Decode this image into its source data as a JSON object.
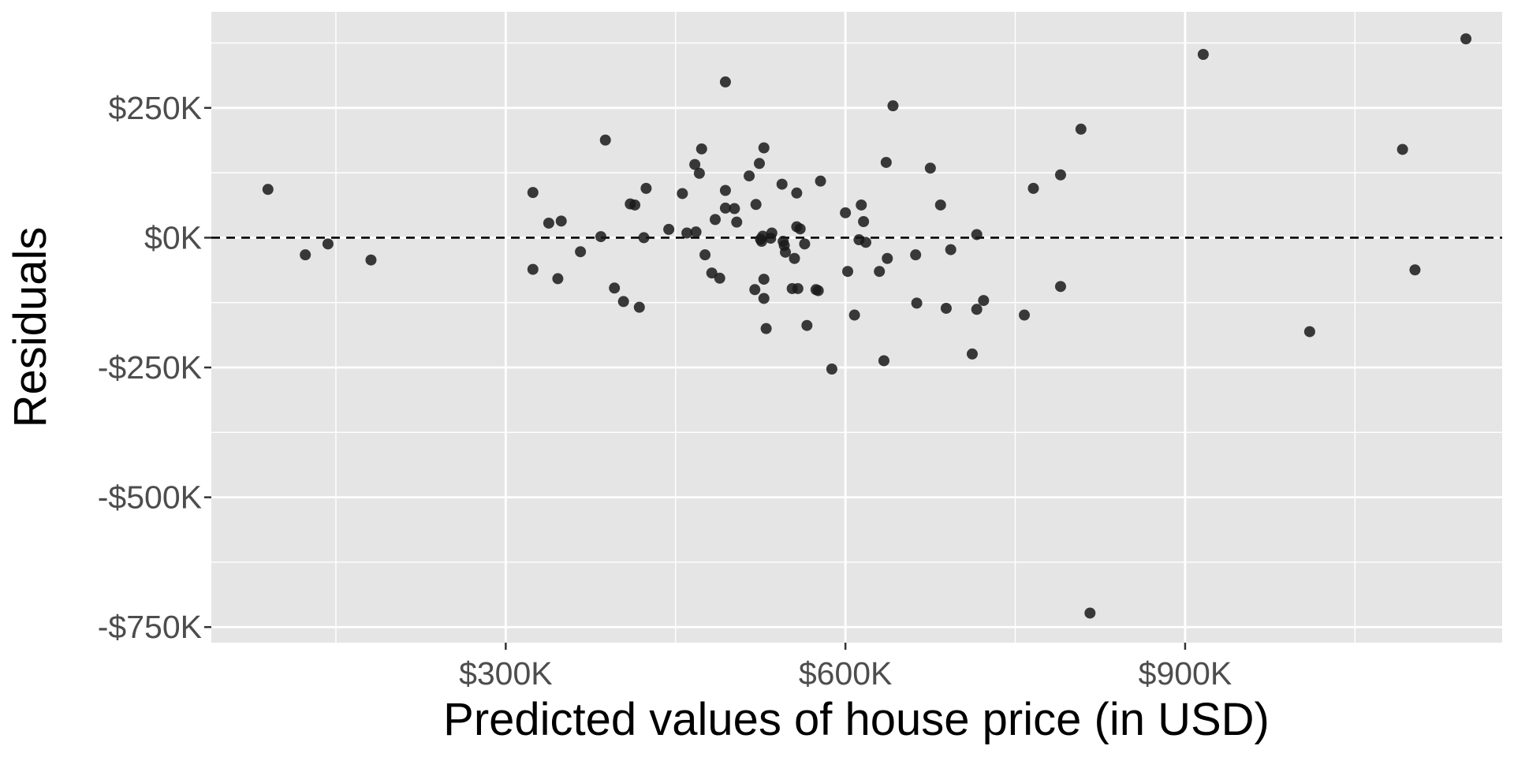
{
  "chart_data": {
    "type": "scatter",
    "title": "",
    "xlabel": "Predicted values of house price (in USD)",
    "ylabel": "Residuals",
    "xlim": [
      40000,
      1180000
    ],
    "ylim": [
      -780000,
      435000
    ],
    "x_ticks": [
      {
        "value": 300000,
        "label": "$300K"
      },
      {
        "value": 600000,
        "label": "$600K"
      },
      {
        "value": 900000,
        "label": "$900K"
      }
    ],
    "x_minor_ticks": [
      150000,
      450000,
      750000,
      1050000
    ],
    "y_ticks": [
      {
        "value": 250000,
        "label": "$250K"
      },
      {
        "value": 0,
        "label": "$0K"
      },
      {
        "value": -250000,
        "label": "-$250K"
      },
      {
        "value": -500000,
        "label": "-$500K"
      },
      {
        "value": -750000,
        "label": "-$750K"
      }
    ],
    "y_minor_ticks": [
      375000,
      125000,
      -125000,
      -375000,
      -625000
    ],
    "reference_line": {
      "y": 0,
      "style": "dashed"
    },
    "grid": true,
    "colors": {
      "panel": "#e5e5e5",
      "grid": "#ffffff",
      "point": "#1a1a1a"
    },
    "points": [
      {
        "x": 90000,
        "y": 93000
      },
      {
        "x": 123000,
        "y": -33000
      },
      {
        "x": 143000,
        "y": -12000
      },
      {
        "x": 181000,
        "y": -43000
      },
      {
        "x": 324000,
        "y": 87000
      },
      {
        "x": 324000,
        "y": -61000
      },
      {
        "x": 338000,
        "y": 28000
      },
      {
        "x": 346000,
        "y": -79000
      },
      {
        "x": 349000,
        "y": 32000
      },
      {
        "x": 366000,
        "y": -27000
      },
      {
        "x": 384000,
        "y": 2000
      },
      {
        "x": 388000,
        "y": 188000
      },
      {
        "x": 396000,
        "y": -97000
      },
      {
        "x": 404000,
        "y": -123000
      },
      {
        "x": 410000,
        "y": 65000
      },
      {
        "x": 414000,
        "y": 63000
      },
      {
        "x": 418000,
        "y": -134000
      },
      {
        "x": 422000,
        "y": 0
      },
      {
        "x": 424000,
        "y": 95000
      },
      {
        "x": 444000,
        "y": 16000
      },
      {
        "x": 456000,
        "y": 85000
      },
      {
        "x": 460000,
        "y": 9000
      },
      {
        "x": 467000,
        "y": 141000
      },
      {
        "x": 468000,
        "y": 11000
      },
      {
        "x": 471000,
        "y": 124000
      },
      {
        "x": 473000,
        "y": 171000
      },
      {
        "x": 476000,
        "y": -33000
      },
      {
        "x": 482000,
        "y": -68000
      },
      {
        "x": 485000,
        "y": 35000
      },
      {
        "x": 489000,
        "y": -78000
      },
      {
        "x": 494000,
        "y": 57000
      },
      {
        "x": 494000,
        "y": 91000
      },
      {
        "x": 494000,
        "y": 300000
      },
      {
        "x": 502000,
        "y": 56000
      },
      {
        "x": 504000,
        "y": 30000
      },
      {
        "x": 515000,
        "y": 119000
      },
      {
        "x": 520000,
        "y": -100000
      },
      {
        "x": 521000,
        "y": 64000
      },
      {
        "x": 524000,
        "y": 143000
      },
      {
        "x": 525000,
        "y": -3000
      },
      {
        "x": 526000,
        "y": -7000
      },
      {
        "x": 527000,
        "y": 3000
      },
      {
        "x": 528000,
        "y": 173000
      },
      {
        "x": 528000,
        "y": -80000
      },
      {
        "x": 528000,
        "y": -117000
      },
      {
        "x": 530000,
        "y": -175000
      },
      {
        "x": 534000,
        "y": -1000
      },
      {
        "x": 535000,
        "y": 9000
      },
      {
        "x": 544000,
        "y": 103000
      },
      {
        "x": 545000,
        "y": -7000
      },
      {
        "x": 546000,
        "y": -15000
      },
      {
        "x": 547000,
        "y": -28000
      },
      {
        "x": 553000,
        "y": -98000
      },
      {
        "x": 555000,
        "y": -40000
      },
      {
        "x": 557000,
        "y": 86000
      },
      {
        "x": 557000,
        "y": 21000
      },
      {
        "x": 558000,
        "y": -98000
      },
      {
        "x": 560000,
        "y": 17000
      },
      {
        "x": 564000,
        "y": -12000
      },
      {
        "x": 566000,
        "y": -169000
      },
      {
        "x": 574000,
        "y": -100000
      },
      {
        "x": 576000,
        "y": -102000
      },
      {
        "x": 578000,
        "y": 109000
      },
      {
        "x": 588000,
        "y": -253000
      },
      {
        "x": 600000,
        "y": 48000
      },
      {
        "x": 602000,
        "y": -65000
      },
      {
        "x": 608000,
        "y": -149000
      },
      {
        "x": 612000,
        "y": -4000
      },
      {
        "x": 614000,
        "y": 63000
      },
      {
        "x": 616000,
        "y": 31000
      },
      {
        "x": 618000,
        "y": -9000
      },
      {
        "x": 630000,
        "y": -65000
      },
      {
        "x": 634000,
        "y": -237000
      },
      {
        "x": 636000,
        "y": 145000
      },
      {
        "x": 637000,
        "y": -40000
      },
      {
        "x": 642000,
        "y": 254000
      },
      {
        "x": 662000,
        "y": -33000
      },
      {
        "x": 663000,
        "y": -126000
      },
      {
        "x": 675000,
        "y": 134000
      },
      {
        "x": 684000,
        "y": 63000
      },
      {
        "x": 689000,
        "y": -136000
      },
      {
        "x": 693000,
        "y": -23000
      },
      {
        "x": 712000,
        "y": -224000
      },
      {
        "x": 716000,
        "y": 6000
      },
      {
        "x": 716000,
        "y": -138000
      },
      {
        "x": 722000,
        "y": -121000
      },
      {
        "x": 758000,
        "y": -149000
      },
      {
        "x": 766000,
        "y": 95000
      },
      {
        "x": 790000,
        "y": 121000
      },
      {
        "x": 790000,
        "y": -94000
      },
      {
        "x": 808000,
        "y": 209000
      },
      {
        "x": 816000,
        "y": -723000
      },
      {
        "x": 916000,
        "y": 353000
      },
      {
        "x": 1010000,
        "y": -181000
      },
      {
        "x": 1092000,
        "y": 170000
      },
      {
        "x": 1103000,
        "y": -62000
      },
      {
        "x": 1148000,
        "y": 383000
      }
    ]
  }
}
